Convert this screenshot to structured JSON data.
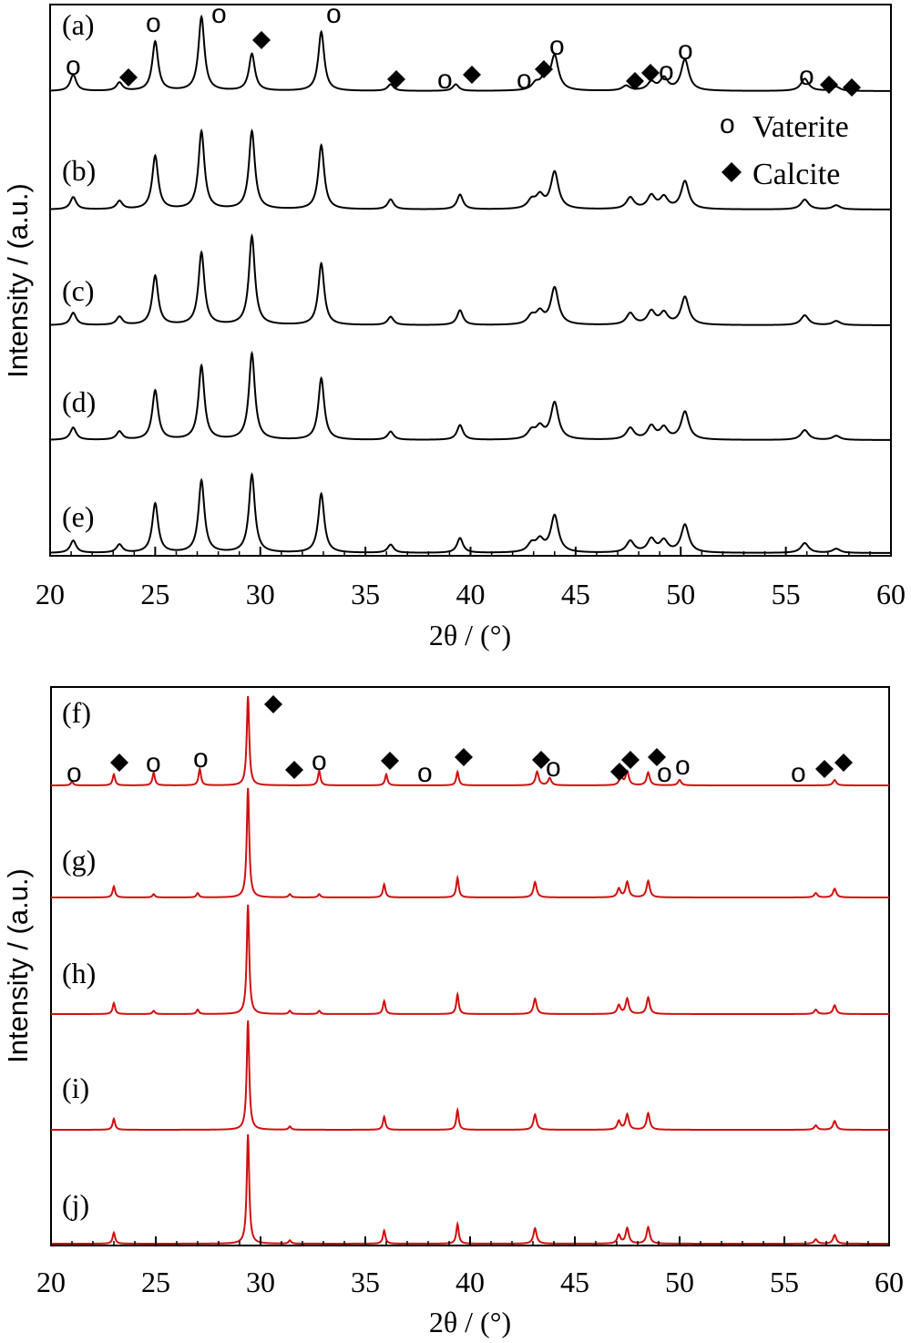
{
  "figure": {
    "legend": {
      "vaterite_symbol": "o",
      "vaterite_label": "Vaterite",
      "calcite_symbol": "◆",
      "calcite_label": "Calcite"
    },
    "colors": {
      "top": "#000000",
      "bottom": "#d01010"
    }
  },
  "chart_data": [
    {
      "type": "line",
      "xlabel": "2θ / (°)",
      "ylabel": "Intensity / (a.u.)",
      "xlim": [
        20,
        60
      ],
      "xticks": [
        "20",
        "25",
        "30",
        "35",
        "40",
        "45",
        "50",
        "55",
        "60"
      ],
      "color": "#000000",
      "series": [
        {
          "name": "(a)",
          "baseline": 0,
          "peaks": [
            [
              21.1,
              20
            ],
            [
              23.3,
              10
            ],
            [
              25.0,
              60
            ],
            [
              27.2,
              90
            ],
            [
              29.6,
              45
            ],
            [
              32.9,
              72
            ],
            [
              36.2,
              8
            ],
            [
              39.3,
              8
            ],
            [
              43.1,
              8
            ],
            [
              43.5,
              12
            ],
            [
              44.0,
              42
            ],
            [
              47.4,
              6
            ],
            [
              48.6,
              10
            ],
            [
              49.2,
              15
            ],
            [
              50.2,
              38
            ],
            [
              55.9,
              15
            ],
            [
              57.4,
              5
            ]
          ]
        },
        {
          "name": "(b)",
          "baseline": 0,
          "peaks": [
            [
              21.1,
              15
            ],
            [
              23.3,
              10
            ],
            [
              25.0,
              65
            ],
            [
              27.2,
              95
            ],
            [
              29.6,
              95
            ],
            [
              32.9,
              78
            ],
            [
              36.2,
              12
            ],
            [
              39.5,
              18
            ],
            [
              42.9,
              10
            ],
            [
              43.3,
              15
            ],
            [
              44.0,
              45
            ],
            [
              47.6,
              14
            ],
            [
              48.6,
              16
            ],
            [
              49.2,
              14
            ],
            [
              50.2,
              34
            ],
            [
              55.9,
              12
            ],
            [
              57.4,
              5
            ]
          ]
        },
        {
          "name": "(c)",
          "baseline": 0,
          "peaks": [
            [
              21.1,
              15
            ],
            [
              23.3,
              10
            ],
            [
              25.0,
              60
            ],
            [
              27.2,
              88
            ],
            [
              29.6,
              108
            ],
            [
              32.9,
              75
            ],
            [
              36.2,
              10
            ],
            [
              39.5,
              18
            ],
            [
              42.9,
              10
            ],
            [
              43.3,
              14
            ],
            [
              44.0,
              45
            ],
            [
              47.6,
              14
            ],
            [
              48.6,
              16
            ],
            [
              49.2,
              14
            ],
            [
              50.2,
              34
            ],
            [
              55.9,
              12
            ],
            [
              57.4,
              5
            ]
          ]
        },
        {
          "name": "(d)",
          "baseline": 0,
          "peaks": [
            [
              21.1,
              15
            ],
            [
              23.3,
              10
            ],
            [
              25.0,
              60
            ],
            [
              27.2,
              90
            ],
            [
              29.6,
              105
            ],
            [
              32.9,
              75
            ],
            [
              36.2,
              10
            ],
            [
              39.5,
              18
            ],
            [
              42.9,
              10
            ],
            [
              43.3,
              14
            ],
            [
              44.0,
              45
            ],
            [
              47.6,
              14
            ],
            [
              48.6,
              16
            ],
            [
              49.2,
              14
            ],
            [
              50.2,
              34
            ],
            [
              55.9,
              12
            ],
            [
              57.4,
              5
            ]
          ]
        },
        {
          "name": "(e)",
          "baseline": 0,
          "peaks": [
            [
              21.1,
              15
            ],
            [
              23.3,
              10
            ],
            [
              25.0,
              60
            ],
            [
              27.2,
              88
            ],
            [
              29.6,
              95
            ],
            [
              32.9,
              72
            ],
            [
              36.2,
              10
            ],
            [
              39.5,
              18
            ],
            [
              42.9,
              10
            ],
            [
              43.3,
              14
            ],
            [
              44.0,
              45
            ],
            [
              47.6,
              14
            ],
            [
              48.6,
              16
            ],
            [
              49.2,
              14
            ],
            [
              50.2,
              34
            ],
            [
              55.9,
              12
            ],
            [
              57.4,
              5
            ]
          ]
        }
      ]
    },
    {
      "type": "line",
      "xlabel": "2θ / (°)",
      "ylabel": "Intensity / (a.u.)",
      "xlim": [
        20,
        60
      ],
      "xticks": [
        "20",
        "25",
        "30",
        "35",
        "40",
        "45",
        "50",
        "55",
        "60"
      ],
      "color": "#d01010",
      "series": [
        {
          "name": "(f)",
          "peaks": [
            [
              21.0,
              4
            ],
            [
              23.0,
              12
            ],
            [
              24.9,
              14
            ],
            [
              27.1,
              18
            ],
            [
              29.4,
              98
            ],
            [
              32.8,
              16
            ],
            [
              36.0,
              12
            ],
            [
              39.4,
              15
            ],
            [
              43.2,
              15
            ],
            [
              43.8,
              8
            ],
            [
              47.2,
              10
            ],
            [
              47.5,
              15
            ],
            [
              48.5,
              14
            ],
            [
              50.0,
              6
            ],
            [
              57.4,
              6
            ]
          ]
        },
        {
          "name": "(g)",
          "peaks": [
            [
              23.0,
              10
            ],
            [
              24.9,
              3
            ],
            [
              27.0,
              4
            ],
            [
              29.4,
              100
            ],
            [
              31.4,
              3
            ],
            [
              32.8,
              3
            ],
            [
              35.9,
              12
            ],
            [
              39.4,
              18
            ],
            [
              43.1,
              14
            ],
            [
              47.1,
              8
            ],
            [
              47.5,
              14
            ],
            [
              48.5,
              15
            ],
            [
              56.5,
              4
            ],
            [
              57.4,
              8
            ]
          ]
        },
        {
          "name": "(h)",
          "peaks": [
            [
              23.0,
              10
            ],
            [
              24.9,
              3
            ],
            [
              27.0,
              4
            ],
            [
              29.4,
              100
            ],
            [
              31.4,
              3
            ],
            [
              32.8,
              3
            ],
            [
              35.9,
              12
            ],
            [
              39.4,
              18
            ],
            [
              43.1,
              14
            ],
            [
              47.1,
              8
            ],
            [
              47.5,
              14
            ],
            [
              48.5,
              15
            ],
            [
              56.5,
              4
            ],
            [
              57.4,
              8
            ]
          ]
        },
        {
          "name": "(i)",
          "peaks": [
            [
              23.0,
              10
            ],
            [
              29.4,
              100
            ],
            [
              31.4,
              3
            ],
            [
              35.9,
              12
            ],
            [
              39.4,
              18
            ],
            [
              43.1,
              14
            ],
            [
              47.1,
              8
            ],
            [
              47.5,
              14
            ],
            [
              48.5,
              15
            ],
            [
              56.5,
              4
            ],
            [
              57.4,
              8
            ]
          ]
        },
        {
          "name": "(j)",
          "peaks": [
            [
              23.0,
              10
            ],
            [
              29.4,
              100
            ],
            [
              31.4,
              3
            ],
            [
              35.9,
              12
            ],
            [
              39.4,
              18
            ],
            [
              43.1,
              14
            ],
            [
              47.1,
              8
            ],
            [
              47.5,
              14
            ],
            [
              48.5,
              15
            ],
            [
              56.5,
              4
            ],
            [
              57.4,
              8
            ]
          ]
        }
      ]
    }
  ]
}
